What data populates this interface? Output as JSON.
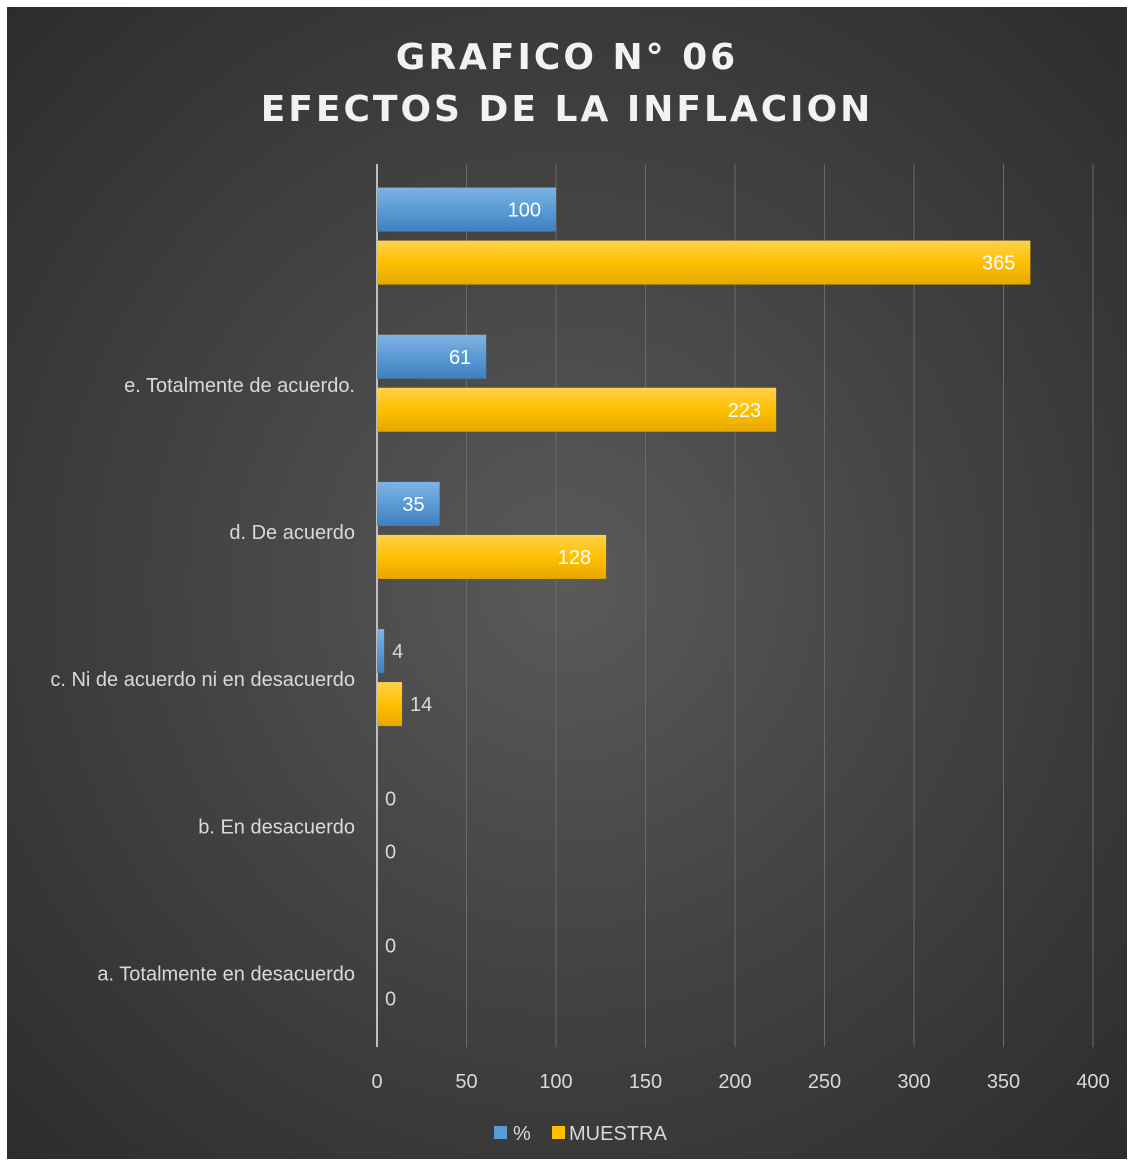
{
  "chart_data": {
    "type": "bar",
    "orientation": "horizontal",
    "title": [
      "GRAFICO N° 06",
      "EFECTOS DE LA INFLACION"
    ],
    "categories": [
      "a. Totalmente en desacuerdo",
      "b. En desacuerdo",
      "c. Ni de acuerdo ni en desacuerdo",
      "d. De acuerdo",
      "e. Totalmente de acuerdo.",
      ""
    ],
    "series": [
      {
        "name": "%",
        "values": [
          0,
          0,
          4,
          35,
          61,
          100
        ],
        "color": "#5b9bd5"
      },
      {
        "name": "MUESTRA",
        "values": [
          0,
          0,
          14,
          128,
          223,
          365
        ],
        "color": "#ffc000"
      }
    ],
    "xlim": [
      0,
      400
    ],
    "xticks": [
      0,
      50,
      100,
      150,
      200,
      250,
      300,
      350,
      400
    ],
    "grid": true,
    "legend_position": "bottom",
    "background": "#404040"
  }
}
